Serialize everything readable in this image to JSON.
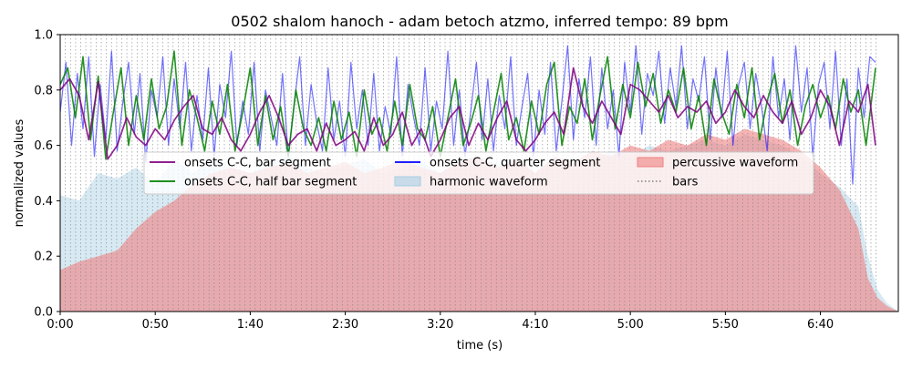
{
  "chart_data": {
    "type": "line",
    "title": "0502 shalom hanoch - adam betoch atzmo, inferred tempo: 89 bpm",
    "xlabel": "time (s)",
    "ylabel": "normalized values",
    "xlim": [
      0,
      441
    ],
    "ylim": [
      0,
      1.0
    ],
    "x_ticks": [
      0,
      50,
      100,
      150,
      200,
      250,
      300,
      350,
      400
    ],
    "x_tick_labels": [
      "0:00",
      "0:50",
      "1:40",
      "2:30",
      "3:20",
      "4:10",
      "5:00",
      "5:50",
      "6:40"
    ],
    "y_ticks": [
      0.0,
      0.2,
      0.4,
      0.6,
      0.8,
      1.0
    ],
    "y_tick_labels": [
      "0.0",
      "0.2",
      "0.4",
      "0.6",
      "0.8",
      "1.0"
    ],
    "grid": false,
    "legend_position": "center",
    "legend": {
      "entries": [
        {
          "label": "onsets C-C, bar segment",
          "style": "line",
          "color": "#800080"
        },
        {
          "label": "onsets C-C, half bar segment",
          "style": "line",
          "color": "#008000"
        },
        {
          "label": "onsets C-C, quarter segment",
          "style": "line",
          "color": "#0000ff"
        },
        {
          "label": "harmonic waveform",
          "style": "patch",
          "color": "#a6cee3"
        },
        {
          "label": "percussive waveform",
          "style": "patch",
          "color": "#f08080"
        },
        {
          "label": "bars",
          "style": "dotted",
          "color": "#808080"
        }
      ]
    },
    "bars": {
      "start": 0,
      "end": 431,
      "spacing": 2.7
    },
    "series": [
      {
        "name": "onsets C-C, bar segment",
        "color": "#800080",
        "x": [
          0,
          5,
          10,
          15,
          20,
          25,
          30,
          35,
          40,
          45,
          50,
          55,
          60,
          65,
          70,
          75,
          80,
          85,
          90,
          95,
          100,
          105,
          110,
          115,
          120,
          125,
          130,
          135,
          140,
          145,
          150,
          155,
          160,
          165,
          170,
          175,
          180,
          185,
          190,
          195,
          200,
          205,
          210,
          215,
          220,
          225,
          230,
          235,
          240,
          245,
          250,
          255,
          260,
          265,
          270,
          275,
          280,
          285,
          290,
          295,
          300,
          305,
          310,
          315,
          320,
          325,
          330,
          335,
          340,
          345,
          350,
          355,
          360,
          365,
          370,
          375,
          380,
          385,
          390,
          395,
          400,
          405,
          410,
          415,
          420,
          425,
          429
        ],
        "values": [
          0.8,
          0.84,
          0.78,
          0.62,
          0.83,
          0.55,
          0.6,
          0.7,
          0.63,
          0.6,
          0.66,
          0.62,
          0.69,
          0.74,
          0.78,
          0.66,
          0.64,
          0.7,
          0.62,
          0.58,
          0.64,
          0.72,
          0.78,
          0.7,
          0.6,
          0.64,
          0.66,
          0.58,
          0.68,
          0.6,
          0.62,
          0.65,
          0.58,
          0.7,
          0.6,
          0.64,
          0.72,
          0.6,
          0.66,
          0.56,
          0.62,
          0.7,
          0.74,
          0.6,
          0.68,
          0.62,
          0.7,
          0.76,
          0.62,
          0.58,
          0.62,
          0.68,
          0.72,
          0.64,
          0.88,
          0.74,
          0.68,
          0.76,
          0.7,
          0.64,
          0.82,
          0.8,
          0.76,
          0.72,
          0.78,
          0.7,
          0.74,
          0.72,
          0.76,
          0.68,
          0.72,
          0.8,
          0.74,
          0.7,
          0.78,
          0.72,
          0.68,
          0.76,
          0.64,
          0.7,
          0.8,
          0.74,
          0.6,
          0.76,
          0.72,
          0.82,
          0.6
        ]
      },
      {
        "name": "onsets C-C, half bar segment",
        "color": "#008000",
        "x": [
          0,
          4,
          8,
          12,
          16,
          20,
          24,
          28,
          32,
          36,
          40,
          44,
          48,
          52,
          56,
          60,
          64,
          68,
          72,
          76,
          80,
          84,
          88,
          92,
          96,
          100,
          104,
          108,
          112,
          116,
          120,
          124,
          128,
          132,
          136,
          140,
          144,
          148,
          152,
          156,
          160,
          164,
          168,
          172,
          176,
          180,
          184,
          188,
          192,
          196,
          200,
          204,
          208,
          212,
          216,
          220,
          224,
          228,
          232,
          236,
          240,
          244,
          248,
          252,
          256,
          260,
          264,
          268,
          272,
          276,
          280,
          284,
          288,
          292,
          296,
          300,
          304,
          308,
          312,
          316,
          320,
          324,
          328,
          332,
          336,
          340,
          344,
          348,
          352,
          356,
          360,
          364,
          368,
          372,
          376,
          380,
          384,
          388,
          392,
          396,
          400,
          404,
          408,
          412,
          416,
          420,
          424,
          429
        ],
        "values": [
          0.82,
          0.88,
          0.7,
          0.92,
          0.62,
          0.85,
          0.55,
          0.72,
          0.88,
          0.6,
          0.78,
          0.62,
          0.84,
          0.66,
          0.74,
          0.94,
          0.6,
          0.8,
          0.7,
          0.58,
          0.76,
          0.64,
          0.82,
          0.58,
          0.72,
          0.88,
          0.6,
          0.78,
          0.62,
          0.74,
          0.56,
          0.8,
          0.66,
          0.6,
          0.7,
          0.58,
          0.76,
          0.62,
          0.72,
          0.56,
          0.8,
          0.64,
          0.7,
          0.58,
          0.76,
          0.6,
          0.82,
          0.66,
          0.62,
          0.74,
          0.56,
          0.7,
          0.84,
          0.6,
          0.68,
          0.78,
          0.58,
          0.72,
          0.86,
          0.62,
          0.7,
          0.58,
          0.76,
          0.64,
          0.82,
          0.9,
          0.6,
          0.74,
          0.68,
          0.84,
          0.62,
          0.78,
          0.92,
          0.66,
          0.82,
          0.7,
          0.9,
          0.74,
          0.86,
          0.68,
          0.8,
          0.72,
          0.88,
          0.66,
          0.78,
          0.6,
          0.84,
          0.72,
          0.64,
          0.82,
          0.7,
          0.88,
          0.62,
          0.76,
          0.86,
          0.68,
          0.8,
          0.6,
          0.74,
          0.82,
          0.7,
          0.78,
          0.66,
          0.84,
          0.72,
          0.8,
          0.6,
          0.88
        ]
      },
      {
        "name": "onsets C-C, quarter segment",
        "color": "#0000ff",
        "x": [
          0,
          3,
          6,
          9,
          12,
          15,
          18,
          21,
          24,
          27,
          30,
          33,
          36,
          39,
          42,
          45,
          48,
          51,
          54,
          57,
          60,
          63,
          66,
          69,
          72,
          75,
          78,
          81,
          84,
          87,
          90,
          93,
          96,
          99,
          102,
          105,
          108,
          111,
          114,
          117,
          120,
          123,
          126,
          129,
          132,
          135,
          138,
          141,
          144,
          147,
          150,
          153,
          156,
          159,
          162,
          165,
          168,
          171,
          174,
          177,
          180,
          183,
          186,
          189,
          192,
          195,
          198,
          201,
          204,
          207,
          210,
          213,
          216,
          219,
          222,
          225,
          228,
          231,
          234,
          237,
          240,
          243,
          246,
          249,
          252,
          255,
          258,
          261,
          264,
          267,
          270,
          273,
          276,
          279,
          282,
          285,
          288,
          291,
          294,
          297,
          300,
          303,
          306,
          309,
          312,
          315,
          318,
          321,
          324,
          327,
          330,
          333,
          336,
          339,
          342,
          345,
          348,
          351,
          354,
          357,
          360,
          363,
          366,
          369,
          372,
          375,
          378,
          381,
          384,
          387,
          390,
          393,
          396,
          399,
          402,
          405,
          408,
          411,
          414,
          417,
          420,
          423,
          426,
          429
        ],
        "values": [
          0.72,
          0.9,
          0.6,
          0.86,
          0.66,
          0.92,
          0.56,
          0.82,
          0.62,
          0.94,
          0.58,
          0.76,
          0.9,
          0.64,
          0.86,
          0.54,
          0.8,
          0.7,
          0.92,
          0.6,
          0.84,
          0.66,
          0.9,
          0.58,
          0.78,
          0.62,
          0.88,
          0.56,
          0.82,
          0.7,
          0.94,
          0.6,
          0.76,
          0.64,
          0.9,
          0.58,
          0.8,
          0.7,
          0.6,
          0.86,
          0.56,
          0.74,
          0.92,
          0.6,
          0.82,
          0.68,
          0.58,
          0.88,
          0.62,
          0.76,
          0.56,
          0.9,
          0.66,
          0.8,
          0.6,
          0.86,
          0.58,
          0.74,
          0.64,
          0.92,
          0.56,
          0.82,
          0.7,
          0.6,
          0.88,
          0.58,
          0.76,
          0.66,
          0.94,
          0.6,
          0.8,
          0.56,
          0.72,
          0.9,
          0.62,
          0.84,
          0.58,
          0.78,
          0.66,
          0.92,
          0.6,
          0.74,
          0.86,
          0.56,
          0.8,
          0.64,
          0.9,
          0.58,
          0.76,
          0.96,
          0.62,
          0.84,
          0.7,
          0.92,
          0.6,
          0.88,
          0.66,
          0.8,
          0.56,
          0.9,
          0.72,
          0.96,
          0.64,
          0.86,
          0.78,
          0.94,
          0.68,
          0.88,
          0.74,
          0.96,
          0.66,
          0.84,
          0.76,
          0.92,
          0.62,
          0.88,
          0.7,
          0.94,
          0.6,
          0.82,
          0.9,
          0.66,
          0.86,
          0.74,
          0.58,
          0.92,
          0.7,
          0.84,
          0.62,
          0.96,
          0.72,
          0.88,
          0.56,
          0.82,
          0.9,
          0.66,
          0.94,
          0.6,
          0.84,
          0.46,
          0.88,
          0.7,
          0.92,
          0.9
        ]
      }
    ],
    "harmonic_waveform": {
      "color": "#a6cee3",
      "x": [
        0,
        10,
        20,
        30,
        40,
        50,
        60,
        70,
        80,
        90,
        100,
        110,
        120,
        130,
        140,
        150,
        160,
        170,
        180,
        190,
        200,
        210,
        220,
        230,
        240,
        250,
        260,
        270,
        280,
        290,
        300,
        310,
        320,
        330,
        340,
        350,
        360,
        370,
        380,
        390,
        400,
        410,
        420,
        425,
        430,
        435,
        441
      ],
      "values": [
        0.42,
        0.4,
        0.5,
        0.48,
        0.52,
        0.46,
        0.55,
        0.5,
        0.56,
        0.52,
        0.5,
        0.54,
        0.56,
        0.52,
        0.5,
        0.53,
        0.55,
        0.5,
        0.52,
        0.54,
        0.5,
        0.55,
        0.56,
        0.53,
        0.55,
        0.5,
        0.56,
        0.52,
        0.55,
        0.58,
        0.56,
        0.6,
        0.58,
        0.6,
        0.62,
        0.6,
        0.64,
        0.62,
        0.6,
        0.56,
        0.5,
        0.45,
        0.38,
        0.2,
        0.08,
        0.03,
        0.0
      ]
    },
    "percussive_waveform": {
      "color": "#f08080",
      "x": [
        0,
        10,
        20,
        30,
        40,
        50,
        60,
        70,
        80,
        90,
        100,
        110,
        120,
        130,
        140,
        150,
        160,
        170,
        180,
        190,
        200,
        210,
        220,
        230,
        240,
        250,
        260,
        270,
        280,
        290,
        300,
        310,
        320,
        330,
        340,
        350,
        360,
        370,
        380,
        390,
        400,
        410,
        420,
        425,
        430,
        435,
        441
      ],
      "values": [
        0.15,
        0.18,
        0.2,
        0.22,
        0.3,
        0.36,
        0.4,
        0.46,
        0.5,
        0.52,
        0.5,
        0.52,
        0.54,
        0.5,
        0.52,
        0.54,
        0.5,
        0.52,
        0.55,
        0.52,
        0.5,
        0.54,
        0.56,
        0.52,
        0.55,
        0.5,
        0.56,
        0.54,
        0.58,
        0.56,
        0.6,
        0.58,
        0.62,
        0.6,
        0.64,
        0.62,
        0.66,
        0.64,
        0.62,
        0.58,
        0.52,
        0.44,
        0.3,
        0.12,
        0.05,
        0.02,
        0.0
      ]
    }
  }
}
